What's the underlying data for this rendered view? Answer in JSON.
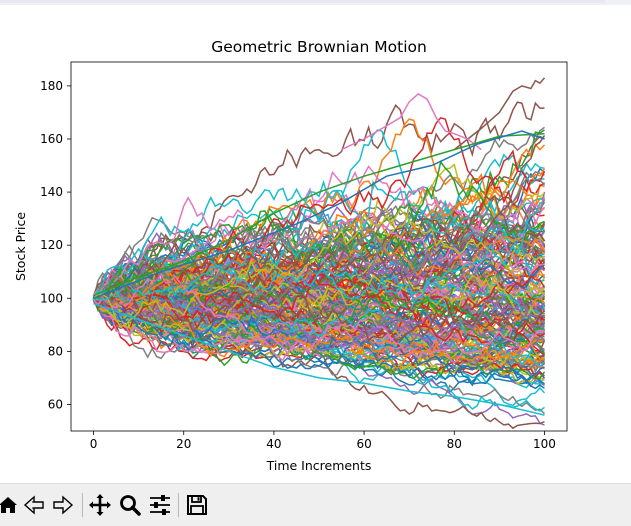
{
  "window": {
    "toolbar": {
      "buttons": [
        {
          "name": "home-icon",
          "tooltip": "Reset original view"
        },
        {
          "name": "back-icon",
          "tooltip": "Back to previous view"
        },
        {
          "name": "forward-icon",
          "tooltip": "Forward to next view"
        },
        {
          "name": "pan-icon",
          "tooltip": "Pan axes"
        },
        {
          "name": "zoom-icon",
          "tooltip": "Zoom to rectangle"
        },
        {
          "name": "configure-subplots-icon",
          "tooltip": "Configure subplots"
        },
        {
          "name": "save-icon",
          "tooltip": "Save the figure"
        }
      ]
    }
  },
  "chart_data": {
    "type": "line",
    "title": "Geometric Brownian Motion",
    "xlabel": "Time Increments",
    "ylabel": "Stock Price",
    "xlim": [
      -5,
      105
    ],
    "ylim": [
      50,
      189
    ],
    "xticks": [
      0,
      20,
      40,
      60,
      80,
      100
    ],
    "yticks": [
      60,
      80,
      100,
      120,
      140,
      160,
      180
    ],
    "grid": false,
    "legend": "none",
    "x": [
      0,
      100
    ],
    "n_steps": 100,
    "initial_value": 100,
    "n_series": 200,
    "series_summary": {
      "min_final_estimate": 56,
      "max_final_estimate": 183,
      "max_peak_estimate": 183,
      "min_trough_estimate": 56
    },
    "highlighted_paths": [
      {
        "color": "#8c564b",
        "points": [
          [
            80,
            156
          ],
          [
            86,
            164
          ],
          [
            90,
            170
          ],
          [
            93,
            178
          ],
          [
            95,
            180
          ],
          [
            97,
            179
          ],
          [
            98,
            182
          ],
          [
            99,
            181
          ],
          [
            100,
            183
          ]
        ]
      },
      {
        "color": "#e377c2",
        "points": [
          [
            55,
            156
          ],
          [
            60,
            160
          ],
          [
            63,
            163
          ],
          [
            66,
            166
          ],
          [
            68,
            168
          ],
          [
            70,
            174
          ],
          [
            72,
            177
          ],
          [
            74,
            175
          ],
          [
            76,
            168
          ],
          [
            78,
            163
          ],
          [
            80,
            162
          ],
          [
            83,
            160
          ],
          [
            86,
            156
          ]
        ]
      },
      {
        "color": "#17becf",
        "points": [
          [
            0,
            98
          ],
          [
            10,
            92
          ],
          [
            20,
            86
          ],
          [
            30,
            80
          ],
          [
            40,
            74
          ],
          [
            50,
            70
          ],
          [
            60,
            68
          ],
          [
            70,
            65
          ],
          [
            80,
            63
          ],
          [
            90,
            60
          ],
          [
            100,
            56
          ]
        ]
      },
      {
        "color": "#2ca02c",
        "points": [
          [
            0,
            101
          ],
          [
            10,
            108
          ],
          [
            20,
            114
          ],
          [
            30,
            122
          ],
          [
            40,
            132
          ],
          [
            50,
            140
          ],
          [
            60,
            146
          ],
          [
            70,
            151
          ],
          [
            80,
            156
          ],
          [
            90,
            161
          ],
          [
            100,
            162
          ]
        ]
      },
      {
        "color": "#1f77b4",
        "points": [
          [
            0,
            100
          ],
          [
            15,
            110
          ],
          [
            30,
            118
          ],
          [
            45,
            128
          ],
          [
            55,
            136
          ],
          [
            65,
            146
          ],
          [
            75,
            150
          ],
          [
            85,
            158
          ],
          [
            95,
            163
          ],
          [
            100,
            160
          ]
        ]
      }
    ],
    "colors": [
      "#1f77b4",
      "#ff7f0e",
      "#2ca02c",
      "#d62728",
      "#9467bd",
      "#8c564b",
      "#e377c2",
      "#7f7f7f",
      "#bcbd22",
      "#17becf"
    ]
  }
}
